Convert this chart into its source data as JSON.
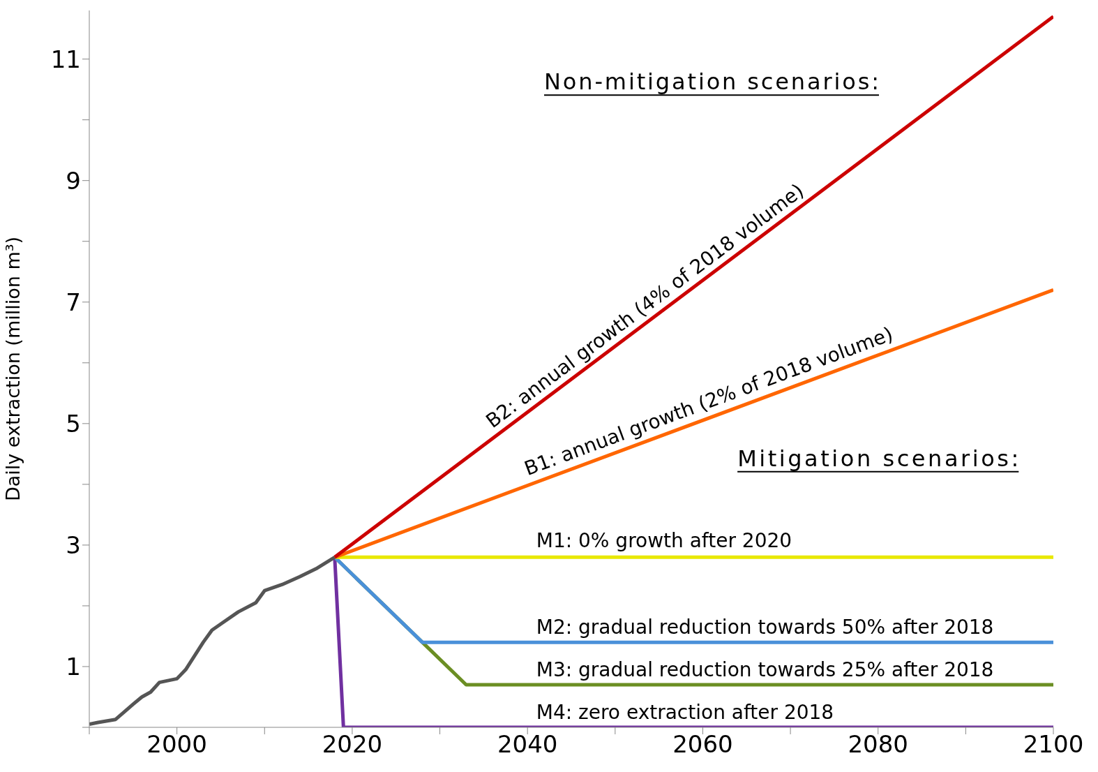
{
  "chart_data": {
    "type": "line",
    "ylabel": "Daily extraction (million m³)",
    "xlim": [
      1990,
      2100
    ],
    "ylim": [
      0,
      11.8
    ],
    "xticks": [
      {
        "value": 1990,
        "label": null
      },
      2000,
      {
        "value": 2010,
        "label": null
      },
      2020,
      {
        "value": 2030,
        "label": null
      },
      2040,
      {
        "value": 2050,
        "label": null
      },
      2060,
      {
        "value": 2070,
        "label": null
      },
      2080,
      {
        "value": 2090,
        "label": null
      },
      2100
    ],
    "yticks": [
      {
        "value": 0,
        "label": null
      },
      1,
      {
        "value": 2,
        "label": null
      },
      3,
      {
        "value": 4,
        "label": null
      },
      5,
      {
        "value": 6,
        "label": null
      },
      7,
      {
        "value": 8,
        "label": null
      },
      9,
      {
        "value": 10,
        "label": null
      },
      11
    ],
    "grid": false,
    "marker": "none",
    "line_style": "solid",
    "annotations": [
      "Non-mitigation scenarios:",
      "Mitigation scenarios:"
    ],
    "series": [
      {
        "color": "#555555",
        "x": [
          1990,
          1991,
          1993,
          1995,
          1996,
          1997,
          1998,
          2000,
          2001,
          2003,
          2004,
          2005,
          2007,
          2009,
          2010,
          2012,
          2014,
          2016,
          2018
        ],
        "values": [
          0.05,
          0.08,
          0.13,
          0.38,
          0.5,
          0.58,
          0.74,
          0.8,
          0.95,
          1.4,
          1.6,
          1.7,
          1.9,
          2.05,
          2.25,
          2.35,
          2.48,
          2.62,
          2.8
        ]
      },
      {
        "name": "B2: annual growth (4% of 2018 volume)",
        "color": "#cc0000",
        "x": [
          2018,
          2100
        ],
        "values": [
          2.8,
          11.7
        ]
      },
      {
        "name": "B1: annual growth (2% of 2018 volume)",
        "color": "#ff6600",
        "x": [
          2018,
          2100
        ],
        "values": [
          2.8,
          7.2
        ]
      },
      {
        "name": "M1: 0% growth after 2020",
        "color": "#e8e800",
        "x": [
          2018,
          2100
        ],
        "values": [
          2.8,
          2.8
        ]
      },
      {
        "name": "M2: gradual reduction towards 50% after 2018",
        "color": "#4a90d9",
        "x": [
          2018,
          2028,
          2100
        ],
        "values": [
          2.8,
          1.4,
          1.4
        ]
      },
      {
        "name": "M3: gradual reduction towards 25% after 2018",
        "color": "#6b8e23",
        "x": [
          2018,
          2028,
          2033,
          2100
        ],
        "values": [
          2.8,
          1.4,
          0.7,
          0.7
        ]
      },
      {
        "name": "M4: zero extraction after 2018",
        "color": "#7030a0",
        "x": [
          2018,
          2019,
          2100
        ],
        "values": [
          2.8,
          0,
          0
        ]
      }
    ]
  }
}
